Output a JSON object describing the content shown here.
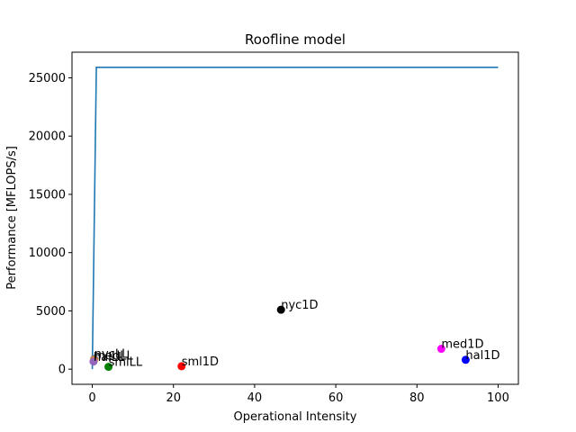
{
  "chart_data": {
    "type": "line",
    "title": "Roofline model",
    "xlabel": "Operational Intensity",
    "ylabel": "Performance [MFLOPS/s]",
    "xlim": [
      -5,
      105
    ],
    "ylim": [
      -1300,
      27200
    ],
    "grid": false,
    "xticks": [
      0,
      20,
      40,
      60,
      80,
      100
    ],
    "yticks": [
      0,
      5000,
      10000,
      15000,
      20000,
      25000
    ],
    "roof": {
      "color": "#1f77b4",
      "x": [
        0,
        0.25,
        0.5,
        0.75,
        1.0,
        1.2,
        100
      ],
      "y": [
        0,
        6500,
        13000,
        19400,
        25900,
        25900,
        25900
      ]
    },
    "points": [
      {
        "label": "hal1D",
        "x": 92,
        "y": 800,
        "color": "#0000ff"
      },
      {
        "label": "med1D",
        "x": 86,
        "y": 1750,
        "color": "#ff00ff"
      },
      {
        "label": "nyc1D",
        "x": 46.5,
        "y": 5100,
        "color": "#000000"
      },
      {
        "label": "sml1D",
        "x": 22,
        "y": 250,
        "color": "#ff0000"
      },
      {
        "label": "smlLL",
        "x": 4,
        "y": 200,
        "color": "#008000"
      },
      {
        "label": "nycLL",
        "x": 0.5,
        "y": 900,
        "color": "#808080"
      },
      {
        "label": "medLL",
        "x": 0.4,
        "y": 750,
        "color": "#ff7f0e"
      },
      {
        "label": "halLL",
        "x": 0.3,
        "y": 650,
        "color": "#9467bd"
      }
    ]
  }
}
